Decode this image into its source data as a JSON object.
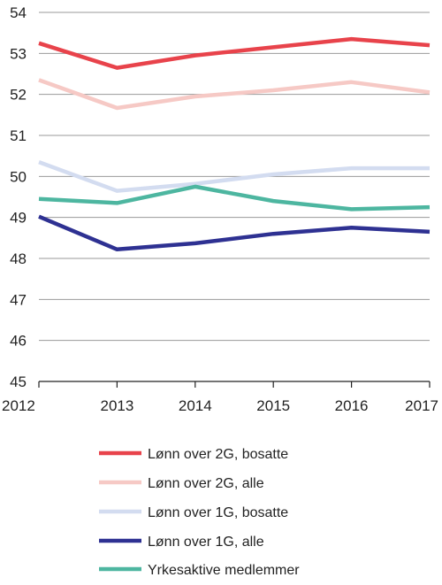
{
  "chart_data": {
    "type": "line",
    "title": "",
    "xlabel": "",
    "ylabel": "",
    "x": [
      2012,
      2013,
      2014,
      2015,
      2016,
      2017
    ],
    "ylim": [
      45,
      54
    ],
    "yticks": [
      45,
      46,
      47,
      48,
      49,
      50,
      51,
      52,
      53,
      54
    ],
    "grid": "horizontal",
    "legend_position": "bottom",
    "series": [
      {
        "name": "Lønn over 2G, bosatte",
        "color": "#e8434b",
        "values": [
          53.25,
          52.65,
          52.95,
          53.15,
          53.35,
          53.2
        ]
      },
      {
        "name": "Lønn over 2G, alle",
        "color": "#f6c9c5",
        "values": [
          52.35,
          51.67,
          51.95,
          52.1,
          52.3,
          52.05
        ]
      },
      {
        "name": "Lønn over 1G, bosatte",
        "color": "#d3dcf0",
        "values": [
          50.35,
          49.65,
          49.82,
          50.05,
          50.2,
          50.2
        ]
      },
      {
        "name": "Lønn over 1G, alle",
        "color": "#2e3192",
        "values": [
          49.02,
          48.22,
          48.37,
          48.6,
          48.75,
          48.65
        ]
      },
      {
        "name": "Yrkesaktive medlemmer",
        "color": "#4db6a0",
        "values": [
          49.45,
          49.35,
          49.75,
          49.4,
          49.2,
          49.25
        ]
      }
    ]
  }
}
